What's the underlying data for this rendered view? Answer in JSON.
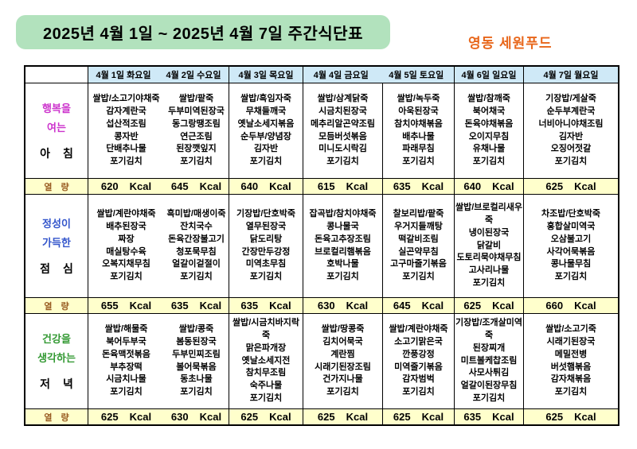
{
  "title": "2025년 4월 1일 ~ 2025년 4월 7일 주간식단표",
  "brand": "영동 세원푸드",
  "colors": {
    "title_background": "#b2e2bd",
    "header_background": "#cfe9f7",
    "kcal_background": "#ffffcc",
    "brand_orange": "#e8661a",
    "breakfast_label": "#cc33cc",
    "lunch_label": "#3355cb",
    "dinner_label": "#339933",
    "kcal_label_brown": "#995c22",
    "border": "#000000"
  },
  "header": {
    "days": [
      "4월 1일 화요일",
      "4월 2일 수요일",
      "4월 3일 목요일",
      "4월 4일 금요일",
      "4월 5일 토요일",
      "4월 6일 일요일",
      "4월 7일 월요일"
    ]
  },
  "kcal_label": "열 량",
  "kcal_unit": "Kcal",
  "meals": [
    {
      "label_lines": [
        "행복을",
        "여는"
      ],
      "meal_name": "아 침",
      "menus": [
        [
          "쌀밥/소고기야채죽",
          "감자계란국",
          "섭산적조림",
          "콩자반",
          "단배추나물",
          "포기김치"
        ],
        [
          "쌀밥/팥죽",
          "두부미역된장국",
          "동그랑땡조림",
          "연근조림",
          "된장깻잎지",
          "포기김치"
        ],
        [
          "쌀밥/흑임자죽",
          "무채들깨국",
          "옛날소세지볶음",
          "순두부/양념장",
          "김자반",
          "포기김치"
        ],
        [
          "쌀밥/삼계닭죽",
          "시금치된장국",
          "메추리알곤약조림",
          "모듬버섯볶음",
          "미니도시락김",
          "포기김치"
        ],
        [
          "쌀밥/녹두죽",
          "아욱된장국",
          "참치야채볶음",
          "배추나물",
          "파래무침",
          "포기김치"
        ],
        [
          "쌀밥/참깨죽",
          "북어채국",
          "돈육야채볶음",
          "오이지무침",
          "유채나물",
          "포기김치"
        ],
        [
          "기장밥/게살죽",
          "순두부계란국",
          "너비아니야채조림",
          "김자반",
          "오징어젓갈",
          "포기김치"
        ]
      ],
      "kcal": [
        "620",
        "645",
        "640",
        "615",
        "635",
        "640",
        "625"
      ]
    },
    {
      "label_lines": [
        "정성이",
        "가득한"
      ],
      "meal_name": "점 심",
      "menus": [
        [
          "쌀밥/계란야채죽",
          "배추된장국",
          "짜장",
          "매실탕수육",
          "오복지채무침",
          "포기김치"
        ],
        [
          "흑미밥/매생이죽",
          "잔치국수",
          "돈육간장불고기",
          "청포묵무침",
          "얼갈이겉절이",
          "포기김치"
        ],
        [
          "기장밥/단호박죽",
          "열무된장국",
          "닭도리탕",
          "간장만두강정",
          "미역초무침",
          "포기김치"
        ],
        [
          "잡곡밥/참치야채죽",
          "콩나물국",
          "돈육고추장조림",
          "브로컬리햄볶음",
          "호박나물",
          "포기김치"
        ],
        [
          "찰보리밥/팥죽",
          "우거지들깨탕",
          "떡갈비조림",
          "실곤약무침",
          "고구마줄기볶음",
          "포기김치"
        ],
        [
          "쌀밥/브로컬리새우죽",
          "냉이된장국",
          "닭갈비",
          "도토리묵야채무침",
          "고사리나물",
          "포기김치"
        ],
        [
          "차조밥/단호박죽",
          "홍합살미역국",
          "오삼불고기",
          "사각어묵볶음",
          "콩나물무침",
          "포기김치"
        ]
      ],
      "kcal": [
        "655",
        "635",
        "635",
        "630",
        "645",
        "625",
        "660"
      ]
    },
    {
      "label_lines": [
        "건강을",
        "생각하는"
      ],
      "meal_name": "저 녁",
      "menus": [
        [
          "쌀밥/해물죽",
          "북어두부국",
          "돈육맥젓볶음",
          "부추장떡",
          "시금치나물",
          "포기김치"
        ],
        [
          "쌀밥/콩죽",
          "봄동된장국",
          "두부민찌조림",
          "볼어묵볶음",
          "동초나물",
          "포기김치"
        ],
        [
          "쌀밥/시금치바지락죽",
          "맑은파개장",
          "옛날소세지전",
          "참치무조림",
          "숙주나물",
          "포기김치"
        ],
        [
          "쌀밥/땅콩죽",
          "김치어묵국",
          "계란찜",
          "시래기된장조림",
          "건가지나물",
          "포기김치"
        ],
        [
          "쌀밥/계란야채죽",
          "소고기맑은국",
          "깐풍강정",
          "미역줄기볶음",
          "감자범벅",
          "포기김치"
        ],
        [
          "기장밥/조개살미역죽",
          "된장찌개",
          "미트볼케찹조림",
          "사모사튀김",
          "얼갈이된장무침",
          "포기김치"
        ],
        [
          "쌀밥/소고기죽",
          "시래기된장국",
          "메밀전병",
          "버섯햄볶음",
          "감자채볶음",
          "포기김치"
        ]
      ],
      "kcal": [
        "625",
        "630",
        "625",
        "625",
        "625",
        "635",
        "625"
      ]
    }
  ]
}
